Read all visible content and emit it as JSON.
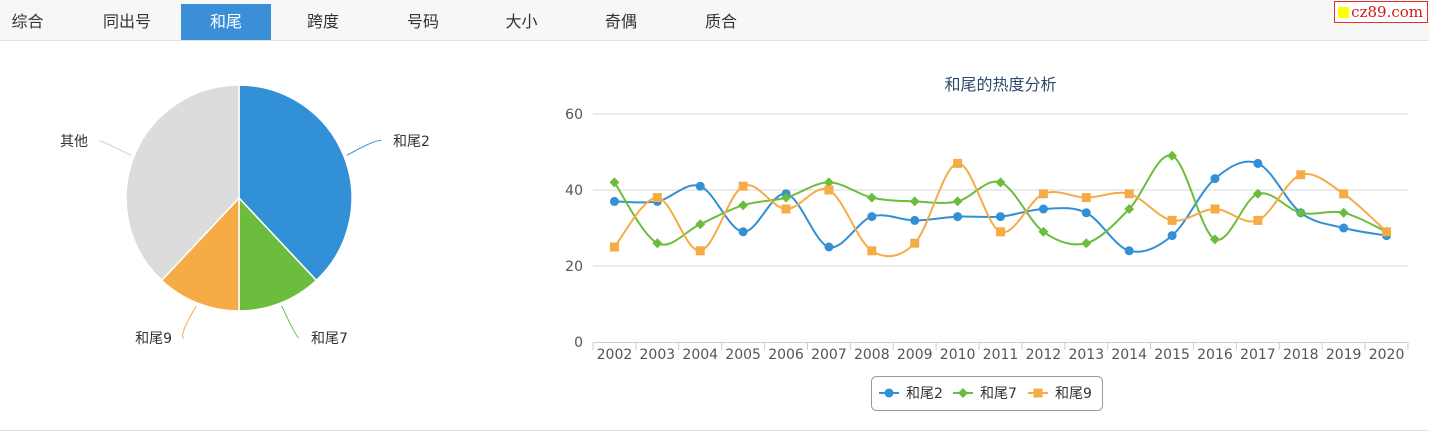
{
  "tabs": [
    {
      "label": "综合",
      "active": false
    },
    {
      "label": "同出号",
      "active": false
    },
    {
      "label": "和尾",
      "active": true
    },
    {
      "label": "跨度",
      "active": false
    },
    {
      "label": "号码",
      "active": false
    },
    {
      "label": "大小",
      "active": false
    },
    {
      "label": "奇偶",
      "active": false
    },
    {
      "label": "质合",
      "active": false
    }
  ],
  "brand": {
    "text": "cz89.com"
  },
  "chart_data": [
    {
      "type": "pie",
      "slices": [
        {
          "label": "和尾2",
          "value": 38,
          "color": "#3290d6"
        },
        {
          "label": "和尾7",
          "value": 12,
          "color": "#6cbd3e"
        },
        {
          "label": "和尾9",
          "value": 12,
          "color": "#f6ac46"
        },
        {
          "label": "其他",
          "value": 38,
          "color": "#dcdcdc"
        }
      ]
    },
    {
      "type": "line",
      "title": "和尾的热度分析",
      "categories": [
        "2002",
        "2003",
        "2004",
        "2005",
        "2006",
        "2007",
        "2008",
        "2009",
        "2010",
        "2011",
        "2012",
        "2013",
        "2014",
        "2015",
        "2016",
        "2017",
        "2018",
        "2019",
        "2020"
      ],
      "yticks": [
        0,
        20,
        40,
        60
      ],
      "ylim": [
        0,
        60
      ],
      "legend": "bottom-center",
      "series": [
        {
          "name": "和尾2",
          "color": "#3290d6",
          "marker": "circle",
          "values": [
            37,
            37,
            41,
            29,
            39,
            25,
            33,
            32,
            33,
            33,
            35,
            34,
            24,
            28,
            43,
            47,
            34,
            30,
            28
          ]
        },
        {
          "name": "和尾7",
          "color": "#6cbd3e",
          "marker": "diamond",
          "values": [
            42,
            26,
            31,
            36,
            38,
            42,
            38,
            37,
            37,
            42,
            29,
            26,
            35,
            49,
            27,
            39,
            34,
            34,
            29
          ]
        },
        {
          "name": "和尾9",
          "color": "#f6ac46",
          "marker": "square",
          "values": [
            25,
            38,
            24,
            41,
            35,
            40,
            24,
            26,
            47,
            29,
            39,
            38,
            39,
            32,
            35,
            32,
            44,
            39,
            29
          ]
        }
      ]
    }
  ]
}
